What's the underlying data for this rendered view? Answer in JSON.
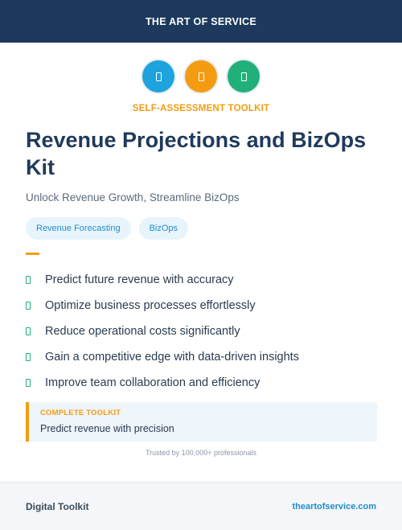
{
  "header": {
    "brand": "THE ART OF SERVICE"
  },
  "icons": [
    {
      "name": "document-icon",
      "color": "#1ea3dc"
    },
    {
      "name": "document-icon",
      "color": "#f39c12"
    },
    {
      "name": "document-icon",
      "color": "#22b07a"
    }
  ],
  "hero": {
    "kicker": "SELF-ASSESSMENT TOOLKIT",
    "title": "Revenue Projections and BizOps Kit",
    "subtitle": "Unlock Revenue Growth, Streamline BizOps"
  },
  "tags": [
    "Revenue Forecasting",
    "BizOps"
  ],
  "features": [
    "Predict future revenue with accuracy",
    "Optimize business processes effortlessly",
    "Reduce operational costs significantly",
    "Gain a competitive edge with data-driven insights",
    "Improve team collaboration and efficiency"
  ],
  "callout": {
    "label": "COMPLETE TOOLKIT",
    "text": "Predict revenue with precision"
  },
  "trust_line": "Trusted by 100,000+ professionals",
  "footer": {
    "left": "Digital Toolkit",
    "right": "theartofservice.com"
  },
  "colors": {
    "navy": "#1d3a5e",
    "orange": "#f39c12",
    "blue": "#1ea3dc",
    "green": "#22b07a"
  }
}
